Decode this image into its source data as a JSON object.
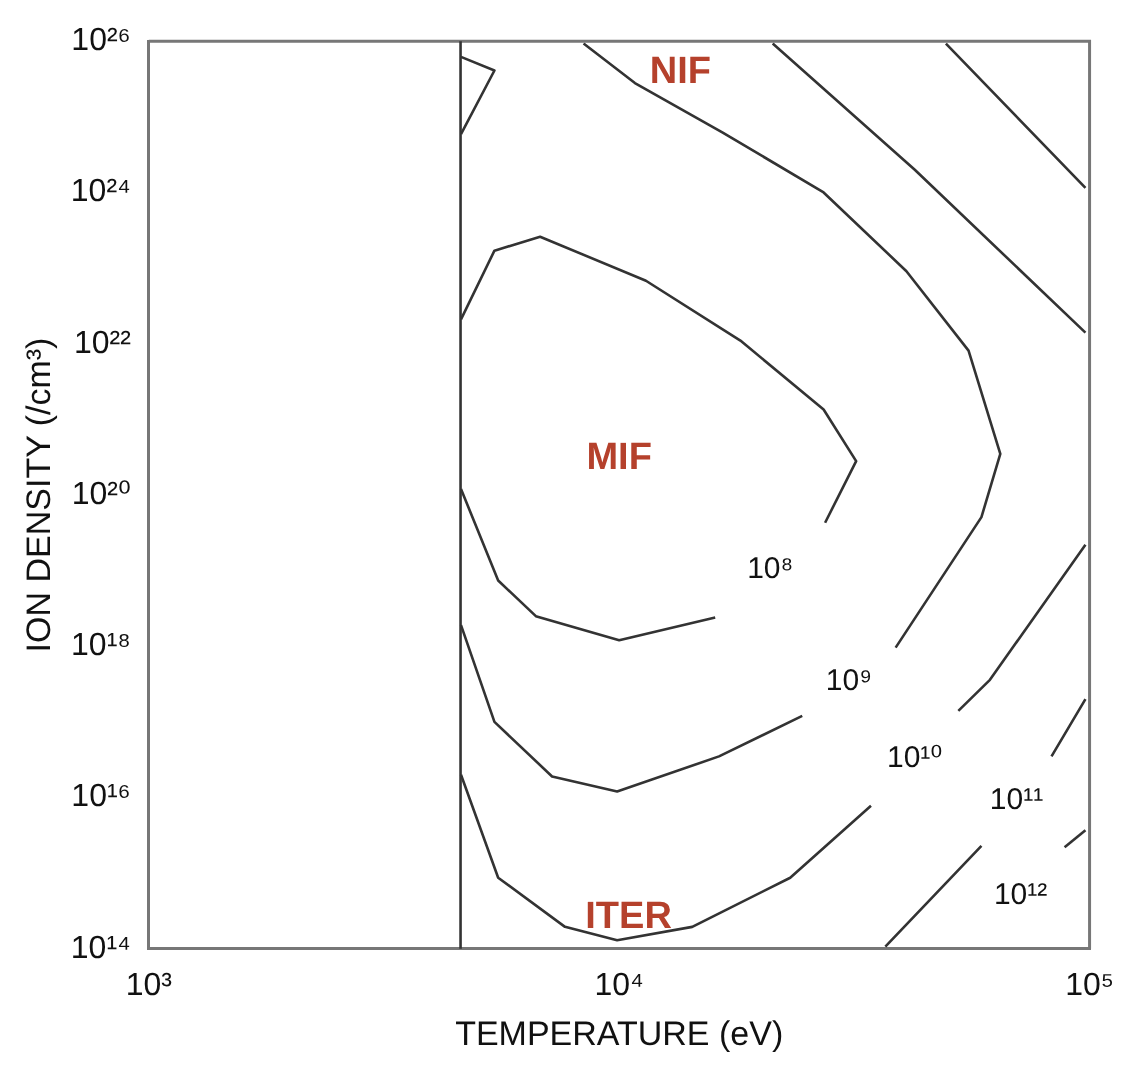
{
  "chart_data": {
    "type": "line",
    "xlabel": "TEMPERATURE (eV)",
    "ylabel": "ION DENSITY (/cm³)",
    "log": "xy",
    "grid": false,
    "legend": false,
    "xlim": [
      1000,
      100000
    ],
    "xticks": [
      {
        "value": 1000,
        "label": "10³"
      },
      {
        "value": 10000,
        "label": "10⁴"
      },
      {
        "value": 100000,
        "label": "10⁵"
      }
    ],
    "ylim": [
      100000000000000.0,
      1e+26
    ],
    "yticks": [
      {
        "value": 100000000000000.0,
        "label": "10¹⁴"
      },
      {
        "value": 1e+16,
        "label": "10¹⁶"
      },
      {
        "value": 1e+18,
        "label": "10¹⁸"
      },
      {
        "value": 1e+20,
        "label": "10²⁰"
      },
      {
        "value": 1e+22,
        "label": "10²²"
      },
      {
        "value": 1e+24,
        "label": "10²⁴"
      },
      {
        "value": 1e+26,
        "label": "10²⁶"
      }
    ],
    "series": [
      {
        "name": "10⁸",
        "color": "#333333",
        "x": [
          4610,
          5530,
          6650,
          10000,
          16000,
          null,
          27400,
          31900,
          27200,
          18100,
          11400,
          6790,
          5430,
          4610,
          null,
          4610,
          5430,
          4610
        ],
        "values": [
          1.2e+20,
          7.4e+18,
          2.5e+18,
          1.2e+18,
          2.4e+18,
          null,
          4.3e+19,
          2.8e+20,
          1.35e+21,
          1.1e+22,
          6.8e+22,
          2.6e+23,
          1.7e+23,
          2.1e+22,
          null,
          6.2e+25,
          4.1e+25,
          5.9e+24
        ]
      },
      {
        "name": "10⁹",
        "color": "#333333",
        "x": [
          4610,
          5430,
          7200,
          9900,
          16300,
          24500,
          null,
          38700,
          58900,
          64600,
          55300,
          40800,
          27200,
          16600,
          10800,
          8400
        ],
        "values": [
          1.9e+18,
          1e+17,
          1.9e+16,
          1.2e+16,
          3.5e+16,
          1.2e+17,
          null,
          9.6e+17,
          5.1e+19,
          3.5e+20,
          8.1e+21,
          9.1e+22,
          1e+24,
          6.2e+24,
          2.8e+25,
          9.3e+25
        ]
      },
      {
        "name": "10¹⁰",
        "color": "#333333",
        "x": [
          4610,
          5530,
          7670,
          9900,
          14300,
          23100,
          34300,
          null,
          52600,
          61400,
          98000,
          null,
          21200,
          42500,
          98000
        ],
        "values": [
          2e+16,
          870000000000000.0,
          195000000000000.0,
          130000000000000.0,
          195000000000000.0,
          870000000000000.0,
          7800000000000000.0,
          null,
          1.4e+17,
          3.6e+17,
          2.2e+19,
          null,
          9.3e+25,
          2e+24,
          1.4e+22
        ]
      },
      {
        "name": "10¹¹",
        "color": "#333333",
        "x": [
          36800,
          58900,
          null,
          83000,
          98000,
          null,
          49500,
          98000
        ],
        "values": [
          107000000000000.0,
          2300000000000000.0,
          null,
          3.5e+16,
          2e+17,
          null,
          9.3e+25,
          1.15e+24
        ]
      },
      {
        "name": "10¹²",
        "color": "#333333",
        "x": [
          88500,
          98000
        ],
        "values": [
          2200000000000000.0,
          3700000000000000.0
        ]
      }
    ],
    "ref_lines": [
      {
        "axis": "x",
        "value": 4600,
        "color": "#333333"
      }
    ],
    "annotations": [
      "NIF",
      "MIF",
      "ITER"
    ]
  }
}
